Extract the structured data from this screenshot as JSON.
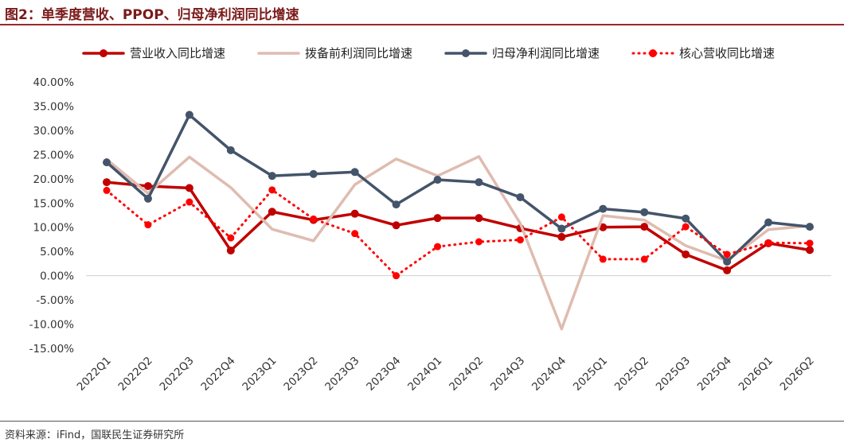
{
  "title": "图2：单季度营收、PPOP、归母净利润同比增速",
  "source": "资料来源：iFind，国联民生证券研究所",
  "chart_data": {
    "type": "line",
    "categories": [
      "2022Q1",
      "2022Q2",
      "2022Q3",
      "2022Q4",
      "2023Q1",
      "2023Q2",
      "2023Q3",
      "2023Q4",
      "2024Q1",
      "2024Q2",
      "2024Q3",
      "2024Q4",
      "2025Q1",
      "2025Q2",
      "2025Q3",
      "2025Q4",
      "2026Q1",
      "2026Q2"
    ],
    "ylim": [
      -15,
      40
    ],
    "yticks": [
      "40.00%",
      "35.00%",
      "30.00%",
      "25.00%",
      "20.00%",
      "15.00%",
      "10.00%",
      "5.00%",
      "0.00%",
      "-5.00%",
      "-10.00%",
      "-15.00%"
    ],
    "ytick_values": [
      40,
      35,
      30,
      25,
      20,
      15,
      10,
      5,
      0,
      -5,
      -10,
      -15
    ],
    "legend_position": "top",
    "series": [
      {
        "name": "营业收入同比增速",
        "color": "#c00000",
        "style": "solid",
        "marker": "circle",
        "values": [
          19.3,
          18.5,
          18.1,
          5.2,
          13.2,
          11.5,
          12.8,
          10.4,
          11.9,
          11.9,
          9.8,
          8.0,
          10.0,
          10.1,
          4.4,
          1.1,
          6.7,
          5.3
        ]
      },
      {
        "name": "拨备前利润同比增速",
        "color": "#dfbcb0",
        "style": "solid",
        "marker": "none",
        "values": [
          24.0,
          17.0,
          24.5,
          18.2,
          9.6,
          7.2,
          18.8,
          24.1,
          20.6,
          24.6,
          10.8,
          -11.0,
          12.4,
          11.5,
          6.2,
          3.1,
          9.5,
          10.3
        ]
      },
      {
        "name": "归母净利润同比增速",
        "color": "#44546a",
        "style": "solid",
        "marker": "circle",
        "values": [
          23.4,
          15.9,
          33.2,
          25.9,
          20.6,
          21.0,
          21.4,
          14.7,
          19.8,
          19.3,
          16.2,
          9.7,
          13.8,
          13.1,
          11.8,
          2.9,
          11.0,
          10.1
        ]
      },
      {
        "name": "核心营收同比增速",
        "color": "#ff0000",
        "style": "dotted",
        "marker": "circle",
        "values": [
          17.6,
          10.5,
          15.2,
          7.8,
          17.7,
          11.7,
          8.7,
          0.0,
          6.0,
          7.0,
          7.4,
          12.1,
          3.4,
          3.4,
          10.1,
          4.4,
          6.8,
          6.7
        ]
      }
    ]
  }
}
